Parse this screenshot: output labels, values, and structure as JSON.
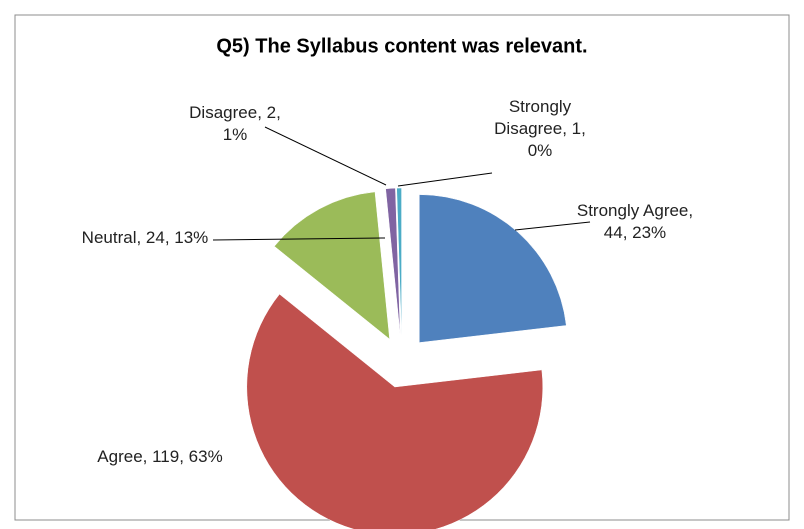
{
  "chart_data": {
    "type": "pie",
    "title": "Q5) The Syllabus content was relevant.",
    "categories": [
      "Strongly Agree",
      "Agree",
      "Neutral",
      "Disagree",
      "Strongly Disagree"
    ],
    "values": [
      44,
      119,
      24,
      2,
      1
    ],
    "value_labels": [
      "Strongly Agree, 44, 23%",
      "Agree, 119, 63%",
      "Neutral, 24, 13%",
      "Disagree, 2, 1%",
      "Strongly Disagree, 1, 0%"
    ],
    "colors": [
      "#4f81bd",
      "#c0504d",
      "#9bbb59",
      "#8064a2",
      "#4bacc6"
    ],
    "exploded": true
  }
}
